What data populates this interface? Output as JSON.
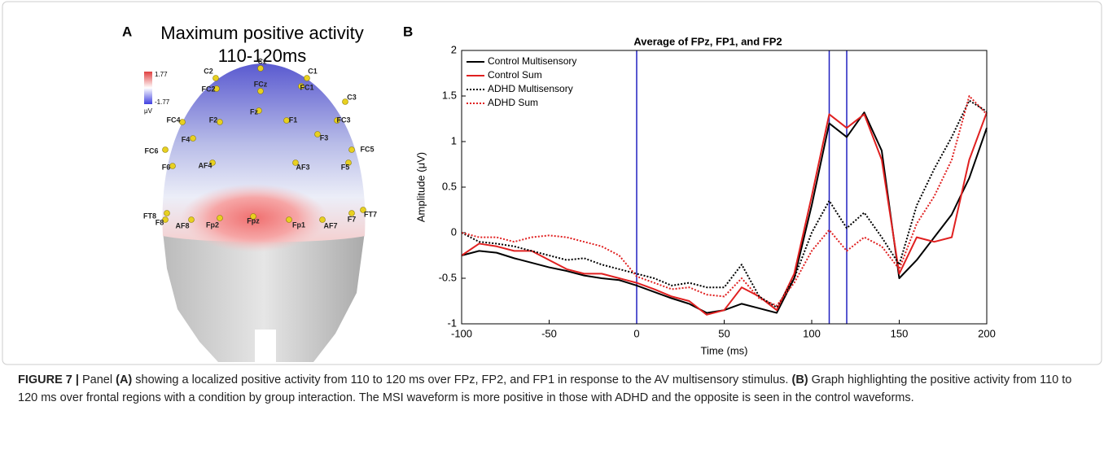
{
  "panel_a": {
    "label": "A",
    "title": "Maximum positive activity",
    "subtitle": "110-120ms",
    "colorbar": {
      "max": "1.77",
      "min": "-1.77",
      "unit": "μV"
    },
    "electrodes": [
      "Cz",
      "C2",
      "C1",
      "FC2",
      "FCz",
      "FC1",
      "C3",
      "FC4",
      "F2",
      "Fz",
      "F1",
      "FC3",
      "F4",
      "F3",
      "FC6",
      "FC5",
      "F6",
      "AF4",
      "AF3",
      "F5",
      "FT8",
      "F8",
      "AF8",
      "Fp2",
      "Fpz",
      "Fp1",
      "AF7",
      "F7",
      "FT7"
    ]
  },
  "panel_b_label": "B",
  "chart_data": {
    "type": "line",
    "title": "Average of FPz, FP1, and FP2",
    "xlabel": "Time (ms)",
    "ylabel": "Amplitude (μV)",
    "x": [
      -100,
      -90,
      -80,
      -70,
      -60,
      -50,
      -40,
      -30,
      -20,
      -10,
      0,
      10,
      20,
      30,
      40,
      50,
      60,
      70,
      80,
      90,
      100,
      110,
      120,
      130,
      140,
      150,
      160,
      170,
      180,
      190,
      200
    ],
    "series": [
      {
        "name": "Control Multisensory",
        "color": "#000000",
        "linestyle": "solid",
        "values": [
          -0.25,
          -0.2,
          -0.22,
          -0.28,
          -0.33,
          -0.38,
          -0.42,
          -0.47,
          -0.5,
          -0.52,
          -0.58,
          -0.65,
          -0.72,
          -0.78,
          -0.88,
          -0.85,
          -0.78,
          -0.83,
          -0.88,
          -0.5,
          0.3,
          1.2,
          1.05,
          1.32,
          0.9,
          -0.5,
          -0.3,
          -0.05,
          0.2,
          0.6,
          1.15
        ]
      },
      {
        "name": "Control Sum",
        "color": "#e02020",
        "linestyle": "solid",
        "values": [
          -0.25,
          -0.12,
          -0.15,
          -0.2,
          -0.2,
          -0.3,
          -0.4,
          -0.45,
          -0.45,
          -0.5,
          -0.55,
          -0.62,
          -0.7,
          -0.75,
          -0.9,
          -0.85,
          -0.6,
          -0.7,
          -0.85,
          -0.45,
          0.4,
          1.3,
          1.15,
          1.3,
          0.8,
          -0.45,
          -0.05,
          -0.1,
          -0.05,
          0.8,
          1.32
        ]
      },
      {
        "name": "ADHD Multisensory",
        "color": "#000000",
        "linestyle": "dotted",
        "values": [
          0.0,
          -0.1,
          -0.12,
          -0.15,
          -0.2,
          -0.25,
          -0.3,
          -0.28,
          -0.35,
          -0.4,
          -0.45,
          -0.5,
          -0.58,
          -0.55,
          -0.6,
          -0.6,
          -0.35,
          -0.7,
          -0.82,
          -0.5,
          0.0,
          0.35,
          0.05,
          0.22,
          -0.05,
          -0.35,
          0.3,
          0.7,
          1.05,
          1.45,
          1.33
        ]
      },
      {
        "name": "ADHD Sum",
        "color": "#e02020",
        "linestyle": "dotted",
        "values": [
          0.0,
          -0.05,
          -0.05,
          -0.1,
          -0.05,
          -0.03,
          -0.05,
          -0.1,
          -0.15,
          -0.25,
          -0.48,
          -0.55,
          -0.62,
          -0.6,
          -0.68,
          -0.7,
          -0.5,
          -0.72,
          -0.8,
          -0.55,
          -0.2,
          0.03,
          -0.2,
          -0.05,
          -0.15,
          -0.4,
          0.1,
          0.4,
          0.8,
          1.5,
          1.3
        ]
      }
    ],
    "vlines": [
      0,
      110,
      120
    ],
    "vline_color": "#2020c0",
    "xlim": [
      -100,
      200
    ],
    "xticks": [
      -100,
      -50,
      0,
      50,
      100,
      150,
      200
    ],
    "ylim": [
      -1,
      2
    ],
    "yticks": [
      -1,
      -0.5,
      0,
      0.5,
      1,
      1.5,
      2
    ],
    "legend": "upper left"
  },
  "caption": {
    "label": "FIGURE 7 |",
    "p1": " Panel ",
    "a": "(A)",
    "p2": " showing a localized positive activity from 110 to 120 ms over FPz, FP2, and FP1 in response to the AV multisensory stimulus. ",
    "b": "(B)",
    "p3": " Graph highlighting the positive activity from 110 to 120 ms over frontal regions with a condition by group interaction. The MSI waveform is more positive in those with ADHD and the opposite is seen in the control waveforms."
  }
}
